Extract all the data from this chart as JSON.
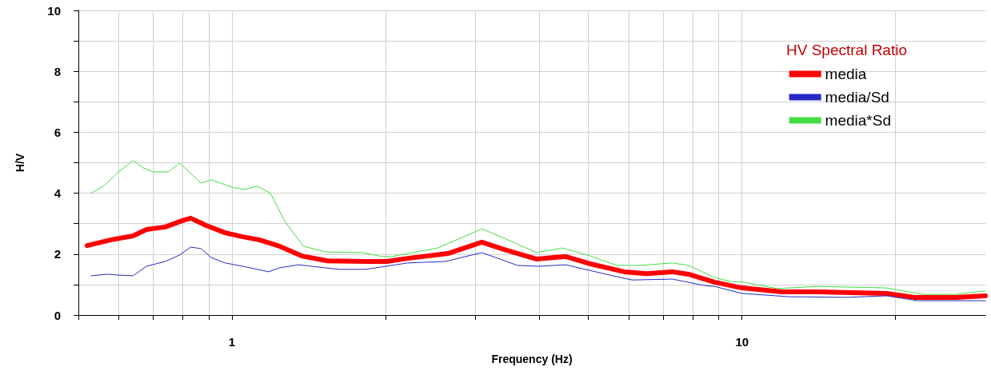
{
  "chart_data": {
    "type": "line",
    "xlabel": "Frequency (Hz)",
    "ylabel": "H/V",
    "legend_title": "HV Spectral Ratio",
    "log": "x",
    "grid": true,
    "legend": "top right",
    "marker": "none",
    "line_style": "solid",
    "xlim": [
      0.5,
      30
    ],
    "xticks": [
      {
        "value": 0.5,
        "label": null
      },
      {
        "value": 0.6,
        "label": null
      },
      {
        "value": 0.7,
        "label": null
      },
      {
        "value": 0.8,
        "label": null
      },
      {
        "value": 0.9,
        "label": null
      },
      1,
      {
        "value": 2,
        "label": null
      },
      {
        "value": 3,
        "label": null
      },
      {
        "value": 4,
        "label": null
      },
      {
        "value": 5,
        "label": null
      },
      {
        "value": 6,
        "label": null
      },
      {
        "value": 7,
        "label": null
      },
      {
        "value": 8,
        "label": null
      },
      {
        "value": 9,
        "label": null
      },
      10,
      {
        "value": 20,
        "label": null
      }
    ],
    "ylim": [
      0,
      10
    ],
    "yticks": [
      0,
      {
        "value": 1,
        "label": null
      },
      2,
      {
        "value": 3,
        "label": null
      },
      4,
      {
        "value": 5,
        "label": null
      },
      6,
      {
        "value": 7,
        "label": null
      },
      8,
      {
        "value": 9,
        "label": null
      },
      10
    ],
    "series": [
      {
        "name": "media",
        "color": "#ff0000",
        "x": [
          0.52,
          0.58,
          0.64,
          0.68,
          0.74,
          0.8,
          0.83,
          0.89,
          0.97,
          1.05,
          1.13,
          1.24,
          1.37,
          1.54,
          1.83,
          2.01,
          2.21,
          2.65,
          3.09,
          3.42,
          3.95,
          4.51,
          5.04,
          5.88,
          6.49,
          7.3,
          7.85,
          8.83,
          10,
          12,
          14.1,
          19.2,
          21.8,
          26.2,
          30
        ],
        "values": [
          2.28,
          2.47,
          2.6,
          2.81,
          2.89,
          3.1,
          3.18,
          2.94,
          2.7,
          2.57,
          2.47,
          2.26,
          1.94,
          1.78,
          1.76,
          1.76,
          1.86,
          2.02,
          2.39,
          2.15,
          1.84,
          1.92,
          1.68,
          1.42,
          1.36,
          1.42,
          1.34,
          1.08,
          0.89,
          0.76,
          0.76,
          0.71,
          0.58,
          0.58,
          0.63
        ]
      },
      {
        "name": "media/Sd",
        "color": "#2828c8",
        "x": [
          0.53,
          0.57,
          0.6,
          0.64,
          0.68,
          0.74,
          0.79,
          0.83,
          0.87,
          0.91,
          0.97,
          1.05,
          1.18,
          1.24,
          1.35,
          1.62,
          1.83,
          2.21,
          2.62,
          3.09,
          3.63,
          3.99,
          4.51,
          5.41,
          6.09,
          7.3,
          8.43,
          8.83,
          10,
          12.4,
          16,
          19.2,
          22.1,
          30
        ],
        "values": [
          1.29,
          1.34,
          1.31,
          1.29,
          1.6,
          1.76,
          1.97,
          2.23,
          2.18,
          1.89,
          1.71,
          1.6,
          1.42,
          1.55,
          1.65,
          1.5,
          1.5,
          1.71,
          1.76,
          2.05,
          1.63,
          1.6,
          1.65,
          1.34,
          1.15,
          1.18,
          0.97,
          0.94,
          0.71,
          0.6,
          0.58,
          0.63,
          0.47,
          0.47
        ]
      },
      {
        "name": "media*Sd",
        "color": "#44dd44",
        "x": [
          0.53,
          0.56,
          0.6,
          0.64,
          0.67,
          0.7,
          0.75,
          0.79,
          0.83,
          0.87,
          0.91,
          1,
          1.06,
          1.12,
          1.19,
          1.27,
          1.38,
          1.53,
          1.8,
          1.97,
          2.06,
          2.21,
          2.53,
          3.09,
          3.42,
          3.95,
          4.45,
          5.04,
          5.67,
          6.32,
          7.3,
          7.85,
          8.05,
          8.83,
          9.5,
          10.1,
          11.7,
          14.1,
          19.2,
          22.6,
          26.2,
          30
        ],
        "values": [
          4,
          4.23,
          4.7,
          5.07,
          4.83,
          4.7,
          4.7,
          4.99,
          4.65,
          4.33,
          4.44,
          4.2,
          4.12,
          4.23,
          4,
          3.07,
          2.26,
          2.07,
          2.05,
          1.92,
          1.92,
          2.02,
          2.2,
          2.83,
          2.52,
          2.05,
          2.2,
          1.94,
          1.63,
          1.63,
          1.71,
          1.63,
          1.55,
          1.23,
          1.1,
          1.08,
          0.87,
          0.94,
          0.89,
          0.68,
          0.68,
          0.79
        ]
      }
    ]
  }
}
